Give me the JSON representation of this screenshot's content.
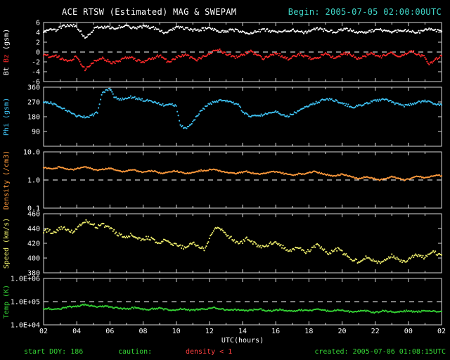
{
  "header": {
    "title": "ACE RTSW (Estimated) MAG & SWEPAM",
    "begin": "Begin: 2005-07-05 02:00:00UTC"
  },
  "footer": {
    "start_doy": "start DOY: 186",
    "caution_label": "caution:",
    "caution_value": "density < 1",
    "created": "created: 2005-07-06 01:08:15UTC"
  },
  "colors": {
    "background": "#000000",
    "axis": "#d9d9d9",
    "title": "#ffffff",
    "begin": "#3fd6c8",
    "footer_green": "#35d435",
    "footer_red": "#ff4040",
    "bt": "#ffffff",
    "bz": "#ff2a2a",
    "phi": "#3ec1f2",
    "density": "#ff9a3c",
    "speed": "#e9e96a",
    "temp": "#35d435"
  },
  "chart_data": {
    "type": "scatter",
    "title": "ACE RTSW (Estimated) MAG & SWEPAM",
    "subtitle": "Begin: 2005-07-05 02:00:00UTC",
    "xlabel": "UTC(hours)",
    "x_range_hours": [
      2,
      26
    ],
    "x_step_hours": 0.25,
    "x_ticks": [
      {
        "v": 2,
        "label": "02"
      },
      {
        "v": 4,
        "label": "04"
      },
      {
        "v": 6,
        "label": "06"
      },
      {
        "v": 8,
        "label": "08"
      },
      {
        "v": 10,
        "label": "10"
      },
      {
        "v": 12,
        "label": "12"
      },
      {
        "v": 14,
        "label": "14"
      },
      {
        "v": 16,
        "label": "16"
      },
      {
        "v": 18,
        "label": "18"
      },
      {
        "v": 20,
        "label": "20"
      },
      {
        "v": 22,
        "label": "22"
      },
      {
        "v": 24,
        "label": "00"
      },
      {
        "v": 26,
        "label": "02"
      }
    ],
    "panels": [
      {
        "name": "mag-bt-bz",
        "ylabel": [
          {
            "text": "Bt",
            "color": "#ffffff"
          },
          {
            "text": "Bz",
            "color": "#ff2a2a"
          },
          {
            "text": "(gsm)",
            "color": "#ffffff"
          }
        ],
        "scale": "linear",
        "ymin": -6,
        "ymax": 6,
        "dashed_at": 0,
        "yticks": [
          {
            "v": 6,
            "label": "6"
          },
          {
            "v": 4,
            "label": "4"
          },
          {
            "v": 2,
            "label": "2"
          },
          {
            "v": 0,
            "label": "0"
          },
          {
            "v": -2,
            "label": "-2"
          },
          {
            "v": -4,
            "label": "-4"
          },
          {
            "v": -6,
            "label": "-6"
          }
        ],
        "series": [
          {
            "name": "Bt",
            "color": "#ffffff",
            "values": [
              4.3,
              4.5,
              4.6,
              4.4,
              5.0,
              5.3,
              5.5,
              5.4,
              5.2,
              4.0,
              2.8,
              3.5,
              4.6,
              5.0,
              5.2,
              5.1,
              5.0,
              4.8,
              5.1,
              5.2,
              5.3,
              5.1,
              4.9,
              5.0,
              5.1,
              5.2,
              5.0,
              4.8,
              4.5,
              3.8,
              4.2,
              4.7,
              4.9,
              5.0,
              4.8,
              4.6,
              4.5,
              4.4,
              4.6,
              4.7,
              4.8,
              4.6,
              4.3,
              4.1,
              4.2,
              4.4,
              4.5,
              4.3,
              4.2,
              4.0,
              3.9,
              4.1,
              4.3,
              4.5,
              4.4,
              4.2,
              4.1,
              4.0,
              4.2,
              4.4,
              4.5,
              4.3,
              4.1,
              4.0,
              4.2,
              4.5,
              4.7,
              4.6,
              4.4,
              4.2,
              4.1,
              4.3,
              4.5,
              4.6,
              4.4,
              4.2,
              4.0,
              3.9,
              4.1,
              4.3,
              4.4,
              4.5,
              4.3,
              4.1,
              4.0,
              4.2,
              4.4,
              4.5,
              4.3,
              4.1,
              4.0,
              4.2,
              4.4,
              4.6,
              4.5,
              4.3,
              4.2
            ]
          },
          {
            "name": "Bz",
            "color": "#ff2a2a",
            "values": [
              -0.5,
              -0.8,
              -1.0,
              -0.7,
              -1.2,
              -1.5,
              -1.8,
              -1.4,
              -1.0,
              -2.5,
              -3.5,
              -2.8,
              -2.0,
              -1.5,
              -1.2,
              -1.6,
              -2.0,
              -2.3,
              -1.9,
              -1.5,
              -1.2,
              -1.0,
              -1.4,
              -1.8,
              -2.1,
              -1.7,
              -1.3,
              -1.0,
              -0.6,
              -1.2,
              -2.0,
              -1.6,
              -1.1,
              -0.8,
              -0.5,
              -0.9,
              -1.3,
              -1.6,
              -1.2,
              -0.8,
              -0.4,
              0.2,
              0.5,
              0.1,
              -0.3,
              -0.7,
              -1.1,
              -0.8,
              -0.5,
              -0.2,
              0.1,
              -0.4,
              -0.9,
              -1.3,
              -1.0,
              -0.6,
              -0.3,
              -0.6,
              -1.0,
              -1.4,
              -1.1,
              -0.7,
              -0.4,
              -0.8,
              -1.2,
              -1.5,
              -1.1,
              -0.7,
              -0.4,
              -0.8,
              -1.2,
              -0.9,
              -0.5,
              -0.2,
              -0.6,
              -1.0,
              -1.3,
              -1.0,
              -0.6,
              -0.3,
              -0.7,
              -1.1,
              -0.8,
              -0.4,
              -0.1,
              -0.5,
              -0.9,
              -0.6,
              -0.2,
              0.1,
              -0.3,
              -0.7,
              -1.0,
              -2.5,
              -1.8,
              -1.2,
              -0.8
            ]
          }
        ]
      },
      {
        "name": "phi",
        "ylabel": [
          {
            "text": "Phi",
            "color": "#3ec1f2"
          },
          {
            "text": "(gsm)",
            "color": "#3ec1f2"
          }
        ],
        "scale": "linear",
        "ymin": 0,
        "ymax": 360,
        "dashed_at": null,
        "yticks": [
          {
            "v": 360,
            "label": "360"
          },
          {
            "v": 270,
            "label": "270"
          },
          {
            "v": 180,
            "label": "180"
          },
          {
            "v": 90,
            "label": "90"
          }
        ],
        "series": [
          {
            "name": "Phi",
            "color": "#3ec1f2",
            "values": [
              270,
              268,
              262,
              255,
              240,
              225,
              210,
              195,
              185,
              180,
              178,
              183,
              192,
              205,
              320,
              340,
              350,
              300,
              285,
              290,
              295,
              300,
              295,
              288,
              282,
              278,
              272,
              265,
              258,
              252,
              248,
              255,
              242,
              130,
              110,
              120,
              150,
              185,
              215,
              240,
              258,
              268,
              276,
              282,
              278,
              270,
              262,
              254,
              210,
              195,
              185,
              190,
              188,
              192,
              198,
              205,
              212,
              200,
              190,
              185,
              195,
              210,
              225,
              238,
              248,
              258,
              268,
              278,
              284,
              288,
              282,
              272,
              262,
              252,
              244,
              240,
              246,
              252,
              262,
              270,
              276,
              282,
              286,
              280,
              270,
              260,
              252,
              246,
              252,
              258,
              266,
              272,
              276,
              270,
              262,
              256,
              252
            ]
          }
        ]
      },
      {
        "name": "density",
        "ylabel": [
          {
            "text": "Density",
            "color": "#ff9a3c"
          },
          {
            "text": "(/cm3)",
            "color": "#ff9a3c"
          }
        ],
        "scale": "log",
        "ymin": 0.1,
        "ymax": 10,
        "dashed_at": 1.0,
        "yticks": [
          {
            "v": 10,
            "label": "10.0"
          },
          {
            "v": 1,
            "label": "1.0"
          },
          {
            "v": 0.1,
            "label": "0.1"
          }
        ],
        "series": [
          {
            "name": "Density",
            "color": "#ff9a3c",
            "values": [
              2.8,
              2.6,
              2.5,
              2.7,
              2.9,
              2.6,
              2.4,
              2.3,
              2.5,
              2.8,
              3.0,
              2.7,
              2.4,
              2.2,
              2.3,
              2.5,
              2.6,
              2.4,
              2.2,
              2.0,
              2.1,
              2.3,
              2.2,
              2.0,
              1.9,
              2.0,
              2.1,
              2.0,
              1.8,
              1.7,
              1.9,
              2.0,
              2.1,
              1.9,
              1.8,
              1.7,
              1.8,
              2.0,
              2.2,
              2.1,
              2.3,
              2.5,
              2.2,
              2.0,
              1.9,
              1.8,
              1.7,
              1.8,
              1.9,
              2.0,
              1.8,
              1.7,
              1.6,
              1.7,
              1.8,
              1.9,
              2.0,
              1.9,
              1.7,
              1.6,
              1.5,
              1.6,
              1.7,
              1.6,
              1.8,
              2.0,
              1.9,
              1.7,
              1.6,
              1.5,
              1.4,
              1.5,
              1.6,
              1.5,
              1.3,
              1.2,
              1.1,
              1.2,
              1.3,
              1.2,
              1.1,
              1.0,
              1.1,
              1.2,
              1.3,
              1.2,
              1.1,
              1.0,
              1.1,
              1.2,
              1.4,
              1.3,
              1.2,
              1.3,
              1.4,
              1.5,
              1.4
            ]
          }
        ]
      },
      {
        "name": "speed",
        "ylabel": [
          {
            "text": "Speed",
            "color": "#e9e96a"
          },
          {
            "text": "(km/s)",
            "color": "#e9e96a"
          }
        ],
        "scale": "linear",
        "ymin": 380,
        "ymax": 460,
        "dashed_at": null,
        "yticks": [
          {
            "v": 460,
            "label": "460"
          },
          {
            "v": 440,
            "label": "440"
          },
          {
            "v": 420,
            "label": "420"
          },
          {
            "v": 400,
            "label": "400"
          },
          {
            "v": 380,
            "label": "380"
          }
        ],
        "series": [
          {
            "name": "Speed",
            "color": "#e9e96a",
            "values": [
              436,
              438,
              435,
              437,
              440,
              442,
              438,
              436,
              440,
              445,
              450,
              448,
              445,
              442,
              446,
              443,
              440,
              436,
              432,
              430,
              428,
              432,
              430,
              426,
              424,
              428,
              426,
              422,
              420,
              424,
              422,
              418,
              420,
              416,
              414,
              418,
              420,
              417,
              414,
              412,
              428,
              438,
              442,
              438,
              432,
              428,
              424,
              420,
              422,
              426,
              423,
              419,
              416,
              414,
              417,
              420,
              422,
              418,
              414,
              410,
              412,
              415,
              412,
              408,
              410,
              414,
              417,
              413,
              409,
              406,
              410,
              412,
              408,
              404,
              400,
              397,
              395,
              398,
              402,
              399,
              396,
              393,
              396,
              400,
              403,
              400,
              397,
              395,
              398,
              402,
              405,
              403,
              400,
              404,
              408,
              406,
              404
            ]
          }
        ]
      },
      {
        "name": "temp",
        "ylabel": [
          {
            "text": "Temp",
            "color": "#35d435"
          },
          {
            "text": "(K)",
            "color": "#35d435"
          }
        ],
        "scale": "log",
        "ymin": 10000,
        "ymax": 1000000,
        "dashed_at": 100000,
        "yticks": [
          {
            "v": 1000000,
            "label": "1.0E+06"
          },
          {
            "v": 100000,
            "label": "1.0E+05"
          },
          {
            "v": 10000,
            "label": "1.0E+04"
          }
        ],
        "series": [
          {
            "name": "Temp",
            "color": "#35d435",
            "values": [
              50000,
              52000,
              48000,
              46000,
              50000,
              55000,
              60000,
              58000,
              62000,
              70000,
              75000,
              68000,
              64000,
              60000,
              65000,
              62000,
              58000,
              55000,
              52000,
              50000,
              48000,
              52000,
              55000,
              50000,
              47000,
              45000,
              48000,
              50000,
              52000,
              48000,
              45000,
              43000,
              46000,
              50000,
              47000,
              44000,
              42000,
              45000,
              48000,
              46000,
              50000,
              55000,
              52000,
              48000,
              45000,
              43000,
              46000,
              44000,
              42000,
              40000,
              43000,
              45000,
              47000,
              44000,
              41000,
              39000,
              42000,
              45000,
              43000,
              40000,
              38000,
              41000,
              44000,
              42000,
              40000,
              43000,
              46000,
              44000,
              41000,
              39000,
              42000,
              44000,
              42000,
              40000,
              37000,
              35000,
              38000,
              41000,
              39000,
              36000,
              34000,
              37000,
              40000,
              38000,
              36000,
              34000,
              37000,
              39000,
              41000,
              38000,
              36000,
              38000,
              40000,
              42000,
              39000,
              37000,
              38000
            ]
          }
        ]
      }
    ]
  }
}
